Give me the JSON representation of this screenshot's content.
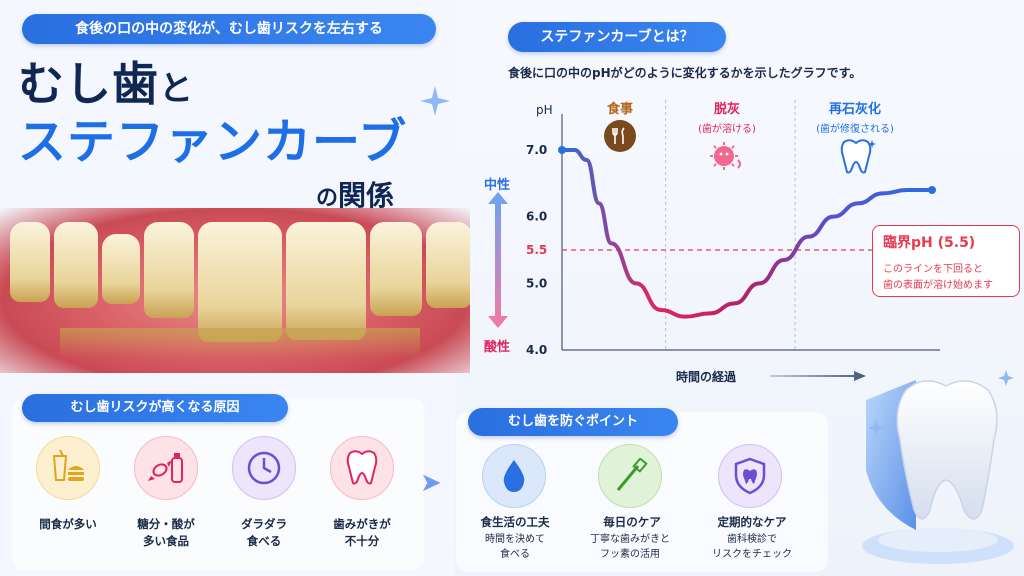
{
  "header": {
    "tag": "食後の口の中の変化が、むし歯リスクを左右する",
    "title_line1_a": "むし歯",
    "title_line1_b": "と",
    "title_line2": "ステファンカーブ",
    "title_line3_a": "の",
    "title_line3_b": "関係"
  },
  "stephan": {
    "heading": "ステファンカーブとは？",
    "description": "食後に口の中のpHがどのように変化するかを示したグラフです。",
    "phases": [
      {
        "label": "食事",
        "sub": ""
      },
      {
        "label": "脱灰",
        "sub": "(歯が溶ける)"
      },
      {
        "label": "再石灰化",
        "sub": "(歯が修復される)"
      }
    ],
    "side_top": "中性",
    "side_bottom": "酸性",
    "callout_title": "臨界pH (5.5)",
    "callout_line1": "このラインを下回ると",
    "callout_line2": "歯の表面が溶け始めます",
    "colors": {
      "neutral": "#2a6fe0",
      "acid": "#e0245e",
      "critical": "#e63a50"
    }
  },
  "chart_data": {
    "type": "line",
    "ylabel": "pH",
    "xlabel": "時間の経過",
    "yticks": [
      "7.0",
      "6.0",
      "5.5",
      "5.0",
      "4.0"
    ],
    "ylim": [
      4.0,
      7.3
    ],
    "critical_ph": 5.5,
    "x": [
      0,
      0.5,
      1,
      1.5,
      2,
      3,
      4,
      5,
      6,
      7,
      8,
      9,
      10,
      11,
      12,
      13,
      14,
      15
    ],
    "y": [
      7.0,
      7.0,
      6.85,
      6.2,
      5.6,
      5.0,
      4.6,
      4.5,
      4.55,
      4.7,
      5.0,
      5.35,
      5.7,
      6.0,
      6.2,
      6.35,
      6.4,
      6.4
    ]
  },
  "causes": {
    "heading": "むし歯リスクが高くなる原因",
    "items": [
      {
        "line1": "間食が多い",
        "line2": "",
        "icon": "snack-icon"
      },
      {
        "line1": "糖分・酸が",
        "line2": "多い食品",
        "icon": "candy-drink-icon"
      },
      {
        "line1": "ダラダラ",
        "line2": "食べる",
        "icon": "clock-icon"
      },
      {
        "line1": "歯みがきが",
        "line2": "不十分",
        "icon": "tooth-icon"
      }
    ]
  },
  "prevention": {
    "heading": "むし歯を防ぐポイント",
    "items": [
      {
        "title": "食生活の工夫",
        "line1": "時間を決めて",
        "line2": "食べる",
        "icon": "water-drop-icon"
      },
      {
        "title": "毎日のケア",
        "line1": "丁寧な歯みがきと",
        "line2": "フッ素の活用",
        "icon": "toothbrush-icon"
      },
      {
        "title": "定期的なケア",
        "line1": "歯科検診で",
        "line2": "リスクをチェック",
        "icon": "shield-tooth-icon"
      }
    ]
  }
}
